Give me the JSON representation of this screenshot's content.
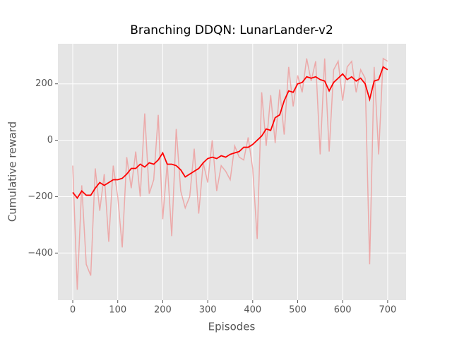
{
  "chart_data": {
    "type": "line",
    "title": "Branching DDQN: LunarLander-v2",
    "xlabel": "Episodes",
    "ylabel": "Cumulative reward",
    "x": [
      0,
      10,
      20,
      30,
      40,
      50,
      60,
      70,
      80,
      90,
      100,
      110,
      120,
      130,
      140,
      150,
      160,
      170,
      180,
      190,
      200,
      210,
      220,
      230,
      240,
      250,
      260,
      270,
      280,
      290,
      300,
      310,
      320,
      330,
      340,
      350,
      360,
      370,
      380,
      390,
      400,
      410,
      420,
      430,
      440,
      450,
      460,
      470,
      480,
      490,
      500,
      510,
      520,
      530,
      540,
      550,
      560,
      570,
      580,
      590,
      600,
      610,
      620,
      630,
      640,
      650,
      660,
      670,
      680,
      690,
      700
    ],
    "series": [
      {
        "color": "#f08080",
        "opacity": 0.6,
        "width": 1.5,
        "values": [
          -90,
          -530,
          -160,
          -440,
          -480,
          -100,
          -250,
          -120,
          -360,
          -90,
          -200,
          -380,
          -60,
          -170,
          -40,
          -200,
          95,
          -190,
          -140,
          90,
          -280,
          -80,
          -340,
          40,
          -180,
          -240,
          -200,
          -30,
          -260,
          -80,
          -150,
          0,
          -180,
          -90,
          -110,
          -140,
          -20,
          -60,
          -70,
          10,
          -100,
          -350,
          170,
          -20,
          160,
          -10,
          180,
          20,
          260,
          120,
          230,
          170,
          290,
          210,
          280,
          -50,
          290,
          -40,
          250,
          280,
          140,
          260,
          280,
          170,
          250,
          220,
          -440,
          260,
          -50,
          290,
          280
        ]
      },
      {
        "color": "#ff0000",
        "opacity": 1,
        "width": 1.8,
        "values": [
          -185,
          -205,
          -180,
          -195,
          -195,
          -170,
          -150,
          -160,
          -150,
          -140,
          -140,
          -135,
          -120,
          -100,
          -100,
          -85,
          -95,
          -80,
          -85,
          -70,
          -45,
          -85,
          -85,
          -90,
          -105,
          -130,
          -120,
          -110,
          -100,
          -80,
          -65,
          -60,
          -65,
          -55,
          -60,
          -50,
          -45,
          -40,
          -25,
          -25,
          -15,
          0,
          15,
          40,
          35,
          80,
          90,
          140,
          175,
          170,
          200,
          205,
          225,
          220,
          225,
          215,
          210,
          175,
          205,
          220,
          235,
          215,
          225,
          210,
          220,
          200,
          145,
          210,
          215,
          260,
          250
        ]
      }
    ],
    "xlim": [
      -33,
      741
    ],
    "ylim": [
      -567,
      342
    ],
    "xticks": [
      0,
      100,
      200,
      300,
      400,
      500,
      600,
      700
    ],
    "yticks": [
      {
        "value": -400,
        "label": "−400"
      },
      {
        "value": -200,
        "label": "−200"
      },
      0,
      200
    ],
    "grid": true,
    "background": "#e5e5e5"
  }
}
